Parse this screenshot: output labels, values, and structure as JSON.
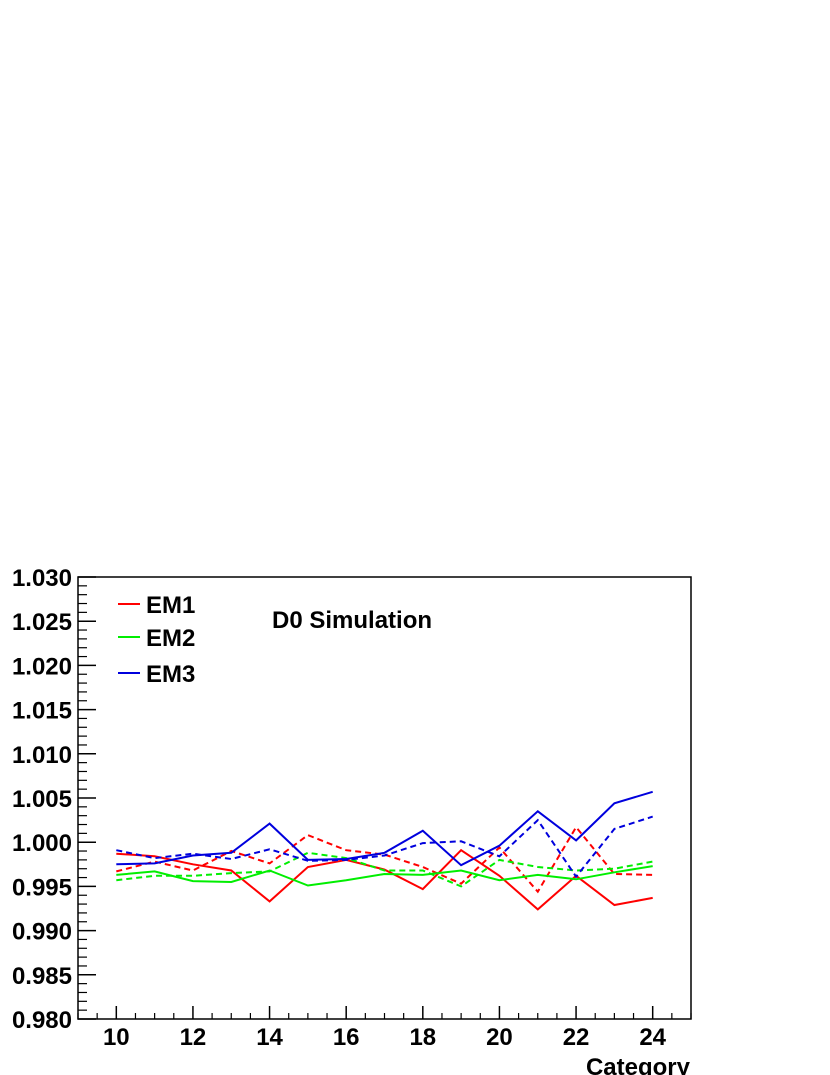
{
  "chart_data": {
    "type": "line",
    "title": "",
    "xlabel": "Category",
    "ylabel": "",
    "annotation": "D0 Simulation",
    "xlim": [
      9,
      25
    ],
    "ylim": [
      0.98,
      1.03
    ],
    "x_ticks": [
      10,
      12,
      14,
      16,
      18,
      20,
      22,
      24
    ],
    "x_tick_labels": [
      "10",
      "12",
      "14",
      "16",
      "18",
      "20",
      "22",
      "24"
    ],
    "y_ticks": [
      0.98,
      0.985,
      0.99,
      0.995,
      1.0,
      1.005,
      1.01,
      1.015,
      1.02,
      1.025,
      1.03
    ],
    "y_tick_labels": [
      "0.980",
      "0.985",
      "0.990",
      "0.995",
      "1.000",
      "1.005",
      "1.010",
      "1.015",
      "1.020",
      "1.025",
      "1.030"
    ],
    "grid": false,
    "legend_position": "top-left",
    "legend": [
      {
        "label": "EM1",
        "color": "#ff0000"
      },
      {
        "label": "EM2",
        "color": "#00ee00"
      },
      {
        "label": "EM3",
        "color": "#0000dd"
      }
    ],
    "x": [
      10,
      11,
      12,
      13,
      14,
      15,
      16,
      17,
      18,
      19,
      20,
      21,
      22,
      23,
      24
    ],
    "series": [
      {
        "name": "EM1",
        "color": "#ff0000",
        "dashed": false,
        "values": [
          0.9987,
          0.9984,
          0.9975,
          0.9968,
          0.9933,
          0.9972,
          0.998,
          0.9969,
          0.9947,
          0.9991,
          0.9962,
          0.9924,
          0.9962,
          0.9929,
          0.9937
        ]
      },
      {
        "color": "#ff0000",
        "dashed": true,
        "values": [
          0.9967,
          0.9978,
          0.9968,
          0.999,
          0.9976,
          1.0008,
          0.9991,
          0.9986,
          0.9972,
          0.9953,
          0.9994,
          0.9944,
          1.0017,
          0.9964,
          0.9963
        ]
      },
      {
        "name": "EM2",
        "color": "#00ee00",
        "dashed": false,
        "values": [
          0.9963,
          0.9967,
          0.9956,
          0.9955,
          0.9968,
          0.9951,
          0.9957,
          0.9964,
          0.9963,
          0.9968,
          0.9957,
          0.9963,
          0.9958,
          0.9966,
          0.9973
        ]
      },
      {
        "color": "#00ee00",
        "dashed": true,
        "values": [
          0.9957,
          0.9962,
          0.9962,
          0.9965,
          0.9967,
          0.9988,
          0.9982,
          0.9968,
          0.9968,
          0.995,
          0.998,
          0.9972,
          0.9968,
          0.997,
          0.9978
        ]
      },
      {
        "name": "EM3",
        "color": "#0000dd",
        "dashed": false,
        "values": [
          0.9975,
          0.9976,
          0.9985,
          0.9988,
          1.0021,
          0.998,
          0.9981,
          0.9988,
          1.0013,
          0.9974,
          0.9996,
          1.0035,
          1.0002,
          1.0044,
          1.0057
        ]
      },
      {
        "color": "#0000dd",
        "dashed": true,
        "values": [
          0.9991,
          0.9982,
          0.9987,
          0.9981,
          0.9992,
          0.9979,
          0.998,
          0.9985,
          0.9999,
          1.0001,
          0.9984,
          1.0025,
          0.9961,
          1.0015,
          1.0029
        ]
      }
    ]
  }
}
